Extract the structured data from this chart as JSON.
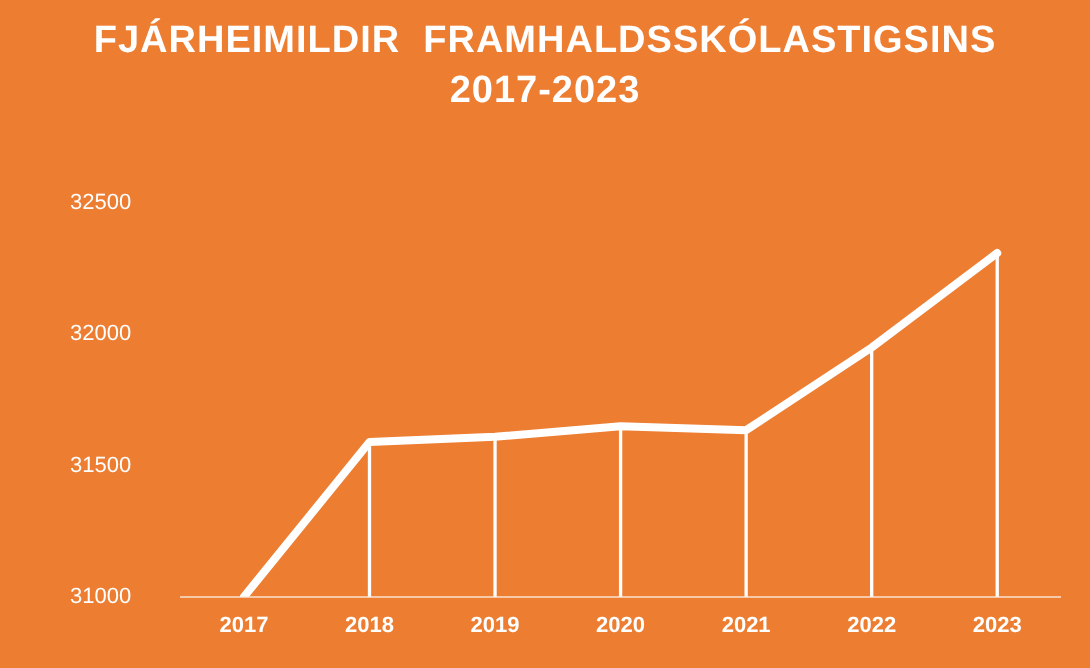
{
  "chart_data": {
    "type": "line",
    "title": "FJÁRHEIMILDIR  FRAMHALDSSKÓLASTIGSINS\n2017-2023",
    "categories": [
      "2017",
      "2018",
      "2019",
      "2020",
      "2021",
      "2022",
      "2023"
    ],
    "series": [
      {
        "color": "#ffffff",
        "values": [
          31000,
          31590,
          31610,
          31650,
          31635,
          31950,
          32310
        ]
      },
      {
        "type": "bar",
        "color": "#ffffff",
        "values": [
          null,
          31590,
          31610,
          31650,
          31635,
          31950,
          32310
        ]
      }
    ],
    "ylim": [
      31000,
      32500
    ],
    "yticks": [
      31000,
      31500,
      32000,
      32500
    ],
    "grid": false,
    "legend": false,
    "marker": "none",
    "line_style": "solid"
  }
}
